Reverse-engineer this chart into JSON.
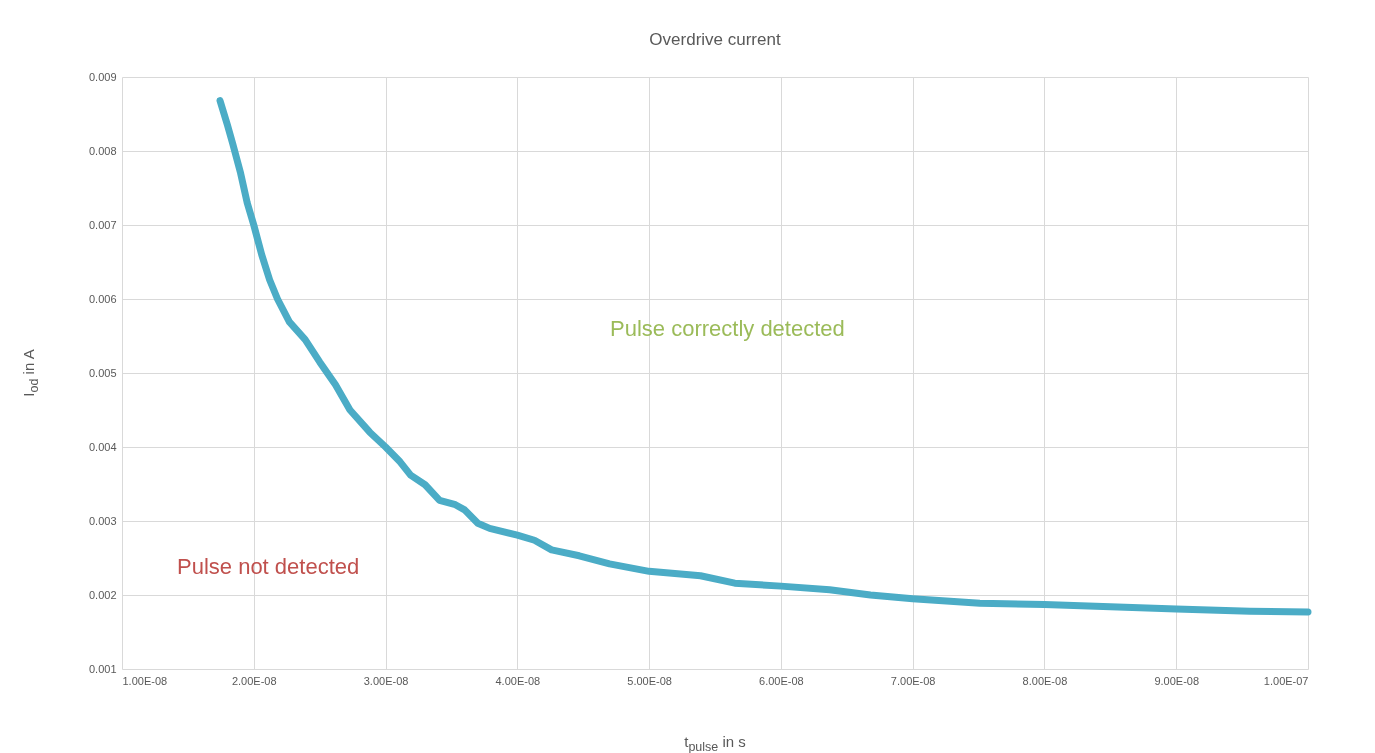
{
  "chart_data": {
    "type": "line",
    "title": "Overdrive current",
    "xlabel": "t$_{pulse}$ in s",
    "ylabel": "I$_{od}$ in A",
    "x": [
      1.744e-08,
      1.8e-08,
      1.84e-08,
      1.9e-08,
      1.95e-08,
      2e-08,
      2.06e-08,
      2.12e-08,
      2.18e-08,
      2.27e-08,
      2.39e-08,
      2.5e-08,
      2.62e-08,
      2.73e-08,
      2.88e-08,
      3e-08,
      3.11e-08,
      3.19e-08,
      3.3e-08,
      3.41e-08,
      3.53e-08,
      3.6e-08,
      3.7e-08,
      3.79e-08,
      4e-08,
      4.13e-08,
      4.26e-08,
      4.47e-08,
      4.7e-08,
      5e-08,
      5.39e-08,
      5.65e-08,
      6e-08,
      6.37e-08,
      6.68e-08,
      7e-08,
      7.51e-08,
      8e-08,
      8.5e-08,
      9e-08,
      9.56e-08,
      1e-07
    ],
    "series": [
      {
        "color": "#4bacc6",
        "values": [
          0.00868,
          0.00835,
          0.0081,
          0.0077,
          0.0073,
          0.007,
          0.0066,
          0.00626,
          0.006,
          0.00569,
          0.00545,
          0.00515,
          0.00484,
          0.0045,
          0.0042,
          0.004,
          0.0038,
          0.00362,
          0.00349,
          0.00328,
          0.00322,
          0.00315,
          0.00297,
          0.0029,
          0.00281,
          0.00274,
          0.00261,
          0.00253,
          0.00242,
          0.00232,
          0.00226,
          0.00216,
          0.00212,
          0.00207,
          0.002,
          0.00195,
          0.00189,
          0.00187,
          0.00184,
          0.00181,
          0.00178,
          0.00177
        ]
      }
    ],
    "xlim": [
      1e-08,
      1e-07
    ],
    "xticks": [
      {
        "value": 1e-08,
        "label": "1.00E-08"
      },
      {
        "value": 2e-08,
        "label": "2.00E-08"
      },
      {
        "value": 3e-08,
        "label": "3.00E-08"
      },
      {
        "value": 4e-08,
        "label": "4.00E-08"
      },
      {
        "value": 5e-08,
        "label": "5.00E-08"
      },
      {
        "value": 6e-08,
        "label": "6.00E-08"
      },
      {
        "value": 7e-08,
        "label": "7.00E-08"
      },
      {
        "value": 8e-08,
        "label": "8.00E-08"
      },
      {
        "value": 9e-08,
        "label": "9.00E-08"
      },
      {
        "value": 1e-07,
        "label": "1.00E-07"
      }
    ],
    "ylim": [
      0.001,
      0.009
    ],
    "yticks": [
      0.001,
      0.002,
      0.003,
      0.004,
      0.005,
      0.006,
      0.007,
      0.008,
      0.009
    ],
    "grid": true,
    "annotations": [
      "Pulse correctly detected",
      "Pulse not detected"
    ]
  }
}
